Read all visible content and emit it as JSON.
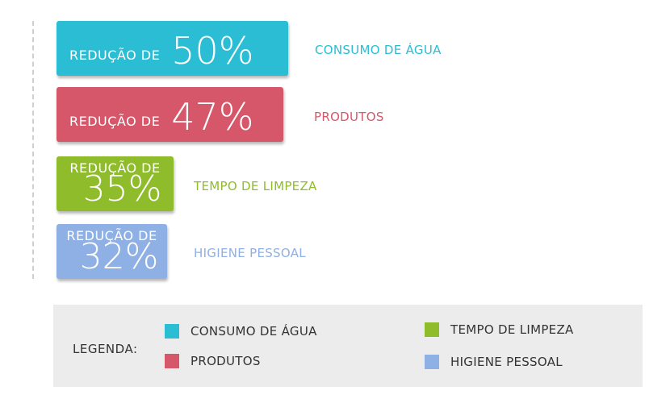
{
  "chart_data": {
    "type": "bar",
    "orientation": "horizontal",
    "value_prefix": "REDUÇÃO DE",
    "categories": [
      "CONSUMO DE ÁGUA",
      "PRODUTOS",
      "TEMPO DE LIMPEZA",
      "HIGIENE PESSOAL"
    ],
    "values": [
      "50%",
      "47%",
      "35%",
      "32%"
    ],
    "colors": [
      "#2bbdd3",
      "#d6566a",
      "#8fbc2b",
      "#8fb0e4"
    ],
    "title": "",
    "xlabel": "",
    "ylabel": "",
    "legend": {
      "title": "LEGENDA:",
      "placement": "bottom",
      "items": [
        {
          "label": "CONSUMO DE ÁGUA",
          "color": "#2bbdd3"
        },
        {
          "label": "TEMPO DE LIMPEZA",
          "color": "#8fbc2b"
        },
        {
          "label": "PRODUTOS",
          "color": "#d6566a"
        },
        {
          "label": "HIGIENE PESSOAL",
          "color": "#8fb0e4"
        }
      ]
    }
  }
}
